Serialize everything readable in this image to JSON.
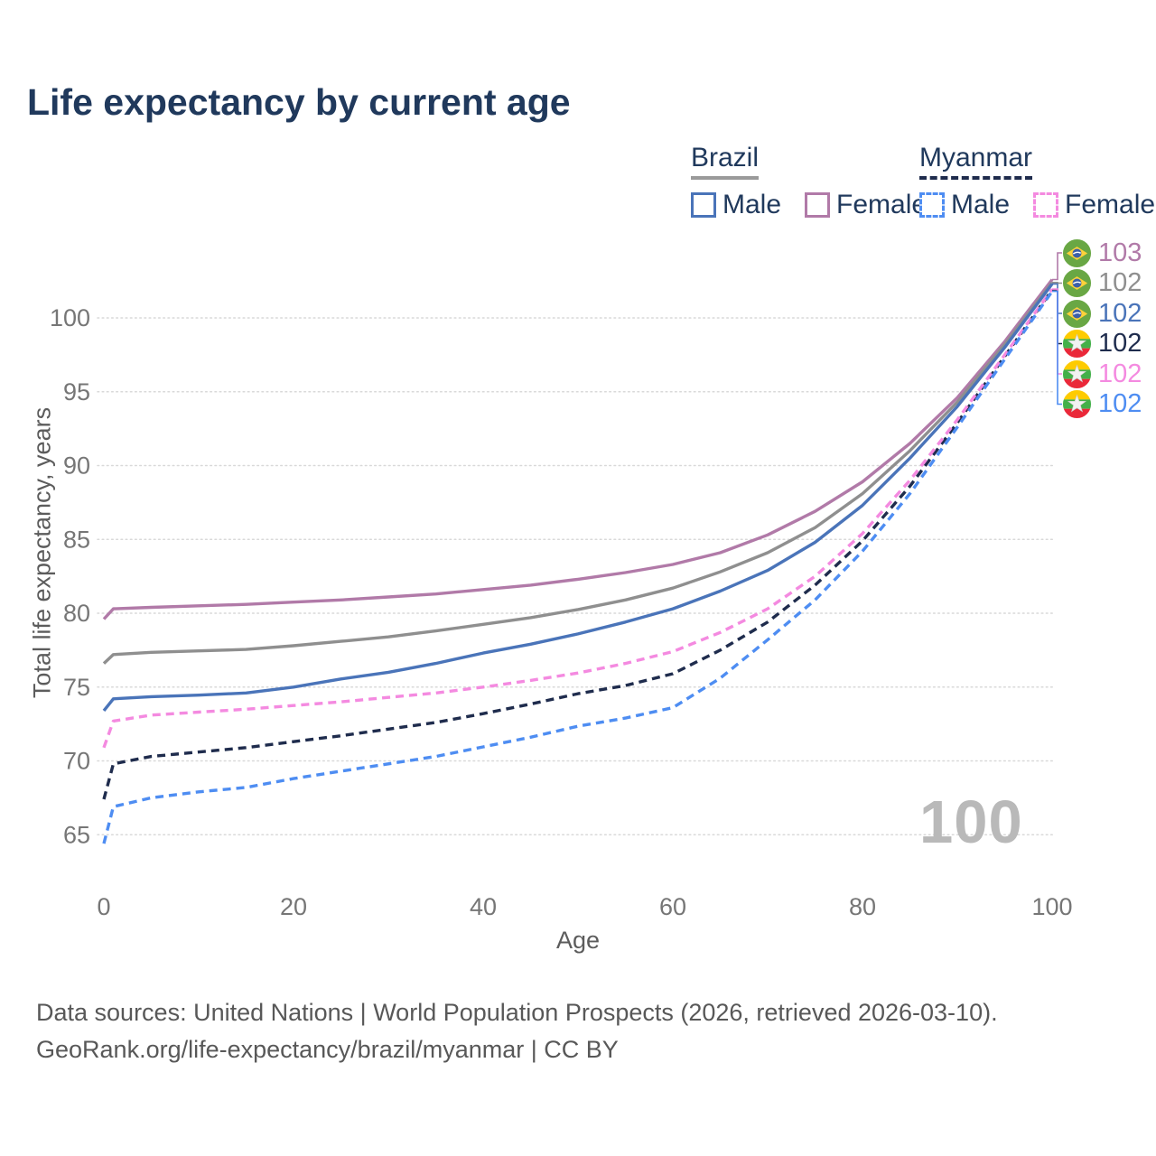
{
  "title": "Life expectancy by current age",
  "legend": {
    "groups": [
      {
        "label": "Brazil",
        "underline_color": "#9a9a9a",
        "underline_dashed": false,
        "items": [
          {
            "label": "Male",
            "color": "#4a74b9",
            "dashed": false
          },
          {
            "label": "Female",
            "color": "#b17aa8",
            "dashed": false
          }
        ]
      },
      {
        "label": "Myanmar",
        "underline_color": "#1f2c4d",
        "underline_dashed": true,
        "items": [
          {
            "label": "Male",
            "color": "#4e8df2",
            "dashed": true
          },
          {
            "label": "Female",
            "color": "#f48ae0",
            "dashed": true
          }
        ]
      }
    ]
  },
  "chart_data": {
    "type": "line",
    "xlabel": "Age",
    "ylabel": "Total life expectancy, years",
    "xlim": [
      0,
      100
    ],
    "ylim": [
      63,
      104
    ],
    "x_ticks": [
      0,
      20,
      40,
      60,
      80,
      100
    ],
    "y_ticks": [
      65,
      70,
      75,
      80,
      85,
      90,
      95,
      100
    ],
    "grid": "horizontal-dotted",
    "legend_position": "top-right",
    "hover_age_indicator": "100",
    "x": [
      0,
      1,
      5,
      10,
      15,
      20,
      25,
      30,
      35,
      40,
      45,
      50,
      55,
      60,
      65,
      70,
      75,
      80,
      85,
      90,
      95,
      100
    ],
    "series": [
      {
        "id": "brazil-female",
        "country": "Brazil",
        "sex": "Female",
        "flag": "br",
        "color": "#b17aa8",
        "dashed": false,
        "end_label": "103",
        "values": [
          79.6,
          80.3,
          80.4,
          80.5,
          80.6,
          80.75,
          80.9,
          81.1,
          81.3,
          81.6,
          81.9,
          82.3,
          82.75,
          83.3,
          84.1,
          85.3,
          86.9,
          88.9,
          91.5,
          94.6,
          98.4,
          102.6
        ]
      },
      {
        "id": "brazil-total",
        "country": "Brazil",
        "sex": "Both",
        "flag": "br",
        "color": "#8f8f8f",
        "dashed": false,
        "end_label": "102",
        "values": [
          76.6,
          77.2,
          77.35,
          77.45,
          77.55,
          77.8,
          78.1,
          78.4,
          78.8,
          79.25,
          79.7,
          80.25,
          80.9,
          81.7,
          82.8,
          84.1,
          85.8,
          88.1,
          91.0,
          94.3,
          98.2,
          102.4
        ]
      },
      {
        "id": "brazil-male",
        "country": "Brazil",
        "sex": "Male",
        "flag": "br",
        "color": "#4a74b9",
        "dashed": false,
        "end_label": "102",
        "values": [
          73.4,
          74.2,
          74.35,
          74.45,
          74.6,
          75.0,
          75.55,
          76.0,
          76.6,
          77.3,
          77.9,
          78.6,
          79.4,
          80.3,
          81.5,
          82.9,
          84.8,
          87.3,
          90.5,
          94.0,
          98.0,
          102.3
        ]
      },
      {
        "id": "myanmar-total",
        "country": "Myanmar",
        "sex": "Both",
        "flag": "mm",
        "color": "#1f2c4d",
        "dashed": true,
        "end_label": "102",
        "values": [
          67.4,
          69.8,
          70.3,
          70.6,
          70.9,
          71.3,
          71.7,
          72.15,
          72.6,
          73.2,
          73.85,
          74.55,
          75.1,
          75.9,
          77.5,
          79.4,
          81.9,
          84.9,
          88.6,
          92.9,
          97.4,
          101.9
        ]
      },
      {
        "id": "myanmar-female",
        "country": "Myanmar",
        "sex": "Female",
        "flag": "mm",
        "color": "#f48ae0",
        "dashed": true,
        "end_label": "102",
        "values": [
          70.9,
          72.7,
          73.1,
          73.3,
          73.5,
          73.75,
          74.0,
          74.3,
          74.6,
          75.0,
          75.45,
          75.95,
          76.6,
          77.4,
          78.7,
          80.3,
          82.5,
          85.4,
          89.0,
          93.1,
          97.5,
          101.95
        ]
      },
      {
        "id": "myanmar-male",
        "country": "Myanmar",
        "sex": "Male",
        "flag": "mm",
        "color": "#4e8df2",
        "dashed": true,
        "end_label": "102",
        "values": [
          64.4,
          66.9,
          67.5,
          67.9,
          68.2,
          68.8,
          69.3,
          69.8,
          70.3,
          70.95,
          71.6,
          72.35,
          72.9,
          73.6,
          75.6,
          78.2,
          80.9,
          84.2,
          88.1,
          92.6,
          97.2,
          101.8
        ]
      }
    ]
  },
  "watermark": "100",
  "footer": {
    "line1": "Data sources: United Nations | World Population Prospects (2026, retrieved 2026-03-10).",
    "line2": "GeoRank.org/life-expectancy/brazil/myanmar | CC BY"
  },
  "colors": {
    "title_text": "#20395c",
    "axis_text": "#767676",
    "gridline": "#d9d9d9",
    "watermark": "#b9b9b9",
    "footer_text": "#585858"
  }
}
